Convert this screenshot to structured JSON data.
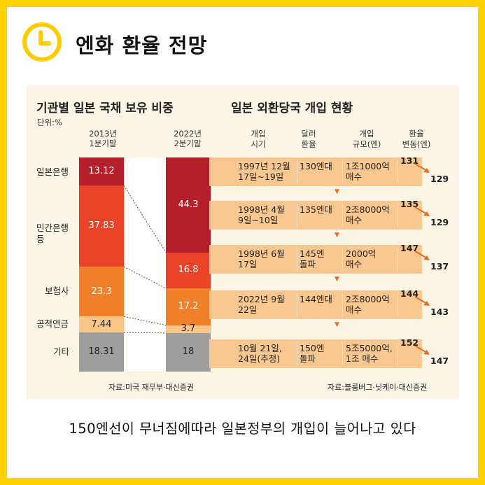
{
  "header": {
    "title": "엔화 환율 전망",
    "icon": "clock-icon"
  },
  "caption": "150엔선이 무너짐에따라 일본정부의 개입이 늘어나고 있다",
  "colors": {
    "frame": "#ffd200",
    "panel": "#fbf5e6",
    "row": "#f9c891",
    "accent": "#e96a24"
  },
  "chart_data": [
    {
      "type": "bar",
      "title": "기관별 일본 국채 보유 비중",
      "unit_label": "단위:%",
      "columns": [
        "2013년\n1분기말",
        "2022년\n2분기말"
      ],
      "categories": [
        "일본은행",
        "민간은행\n등",
        "보험사",
        "공적연금",
        "기타"
      ],
      "series": [
        {
          "name": "2013년 1분기말",
          "values": [
            13.12,
            37.83,
            23.3,
            7.44,
            18.31
          ],
          "labels": [
            "13.12",
            "37.83",
            "23.3",
            "7.44",
            "18.31"
          ]
        },
        {
          "name": "2022년 2분기말",
          "values": [
            44.3,
            16.8,
            17.2,
            3.7,
            18
          ],
          "labels": [
            "44.3",
            "16.8",
            "17.2",
            "3.7",
            "18"
          ]
        }
      ],
      "colors": [
        "#b51f2a",
        "#e9432a",
        "#f0812a",
        "#fac788",
        "#9e9e9e"
      ],
      "ylim": [
        0,
        100
      ],
      "source": "자료:미국 재무부·대신증권"
    },
    {
      "type": "table",
      "title": "일본 외환당국 개입 현황",
      "headers": [
        "개입\n시기",
        "달러\n환율",
        "개입\n규모(엔)",
        "환율\n변동(엔)"
      ],
      "rows": [
        {
          "date": "1997년 12월\n17일~19일",
          "rate": "130엔대",
          "scale": "1조1000억\n매수",
          "from": 131,
          "to": 129
        },
        {
          "date": "1998년 4월\n9일~10일",
          "rate": "135엔대",
          "scale": "2조8000억\n매수",
          "from": 135,
          "to": 129
        },
        {
          "date": "1998년 6월\n17일",
          "rate": "145엔\n돌파",
          "scale": "2000억\n매수",
          "from": 147,
          "to": 137
        },
        {
          "date": "2022년 9월\n22일",
          "rate": "144엔대",
          "scale": "2조8000억\n매수",
          "from": 144,
          "to": 143
        },
        {
          "date": "10월 21일,\n24일(추정)",
          "rate": "150엔\n돌파",
          "scale": "5조5000억,\n1조 매수",
          "from": 152,
          "to": 147
        }
      ],
      "source": "자료:블룸버그·닛케이·대신증권"
    }
  ]
}
